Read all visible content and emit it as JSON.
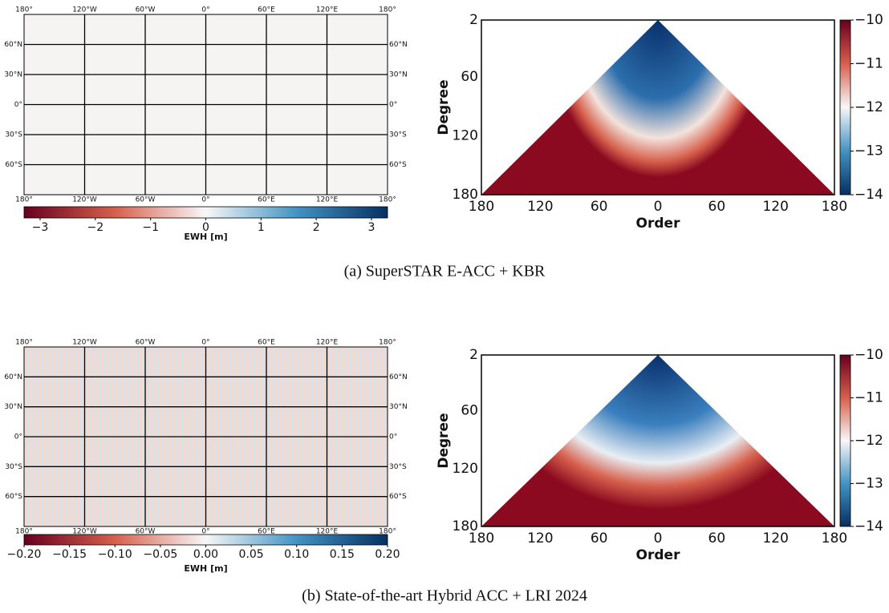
{
  "panels": [
    {
      "caption": "(a) SuperSTAR E-ACC + KBR",
      "map": {
        "lon_labels": [
          "180°",
          "120°W",
          "60°W",
          "0°",
          "60°E",
          "120°E",
          "180°"
        ],
        "lat_labels": [
          "60°N",
          "30°N",
          "0°",
          "30°S",
          "60°S"
        ],
        "colorbar_ticks": [
          "−3",
          "−2",
          "−1",
          "0",
          "1",
          "2",
          "3"
        ],
        "colorbar_label": "EWH [m]"
      },
      "spectrum": {
        "xlabel": "Order",
        "ylabel": "Degree",
        "xticks": [
          180,
          120,
          60,
          0,
          60,
          120,
          180
        ],
        "yticks": [
          2,
          60,
          120,
          180
        ],
        "colorbar_ticks": [
          "−10",
          "−11",
          "−12",
          "−13",
          "−14"
        ]
      }
    },
    {
      "caption": "(b) State-of-the-art Hybrid ACC + LRI 2024",
      "map": {
        "lon_labels": [
          "180°",
          "120°W",
          "60°W",
          "0°",
          "60°E",
          "120°E",
          "180°"
        ],
        "lat_labels": [
          "60°N",
          "30°N",
          "0°",
          "30°S",
          "60°S"
        ],
        "colorbar_ticks": [
          "−0.20",
          "−0.15",
          "−0.10",
          "−0.05",
          "0.00",
          "0.05",
          "0.10",
          "0.15",
          "0.20"
        ],
        "colorbar_label": "EWH [m]"
      },
      "spectrum": {
        "xlabel": "Order",
        "ylabel": "Degree",
        "xticks": [
          180,
          120,
          60,
          0,
          60,
          120,
          180
        ],
        "yticks": [
          2,
          60,
          120,
          180
        ],
        "colorbar_ticks": [
          "−10",
          "−11",
          "−12",
          "−13",
          "−14"
        ]
      }
    }
  ]
}
